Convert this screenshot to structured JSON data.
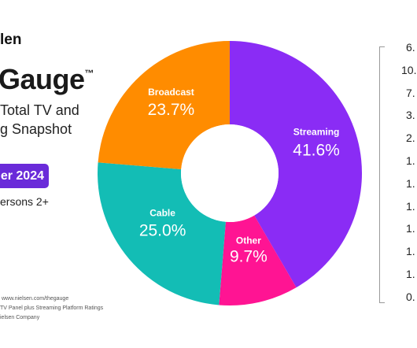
{
  "header": {
    "logo_text": "len",
    "title": "Gauge",
    "trademark": "™",
    "subtitle_line1": "Total TV and",
    "subtitle_line2": "g Snapshot",
    "month_badge": "er 2024",
    "demographic": "ersons 2+"
  },
  "footer": {
    "line1": "www.nielsen.com/thegauge",
    "line2": "TV Panel plus Streaming Platform Ratings",
    "line3": "ielsen Company"
  },
  "colors": {
    "streaming": "#8a2cf5",
    "other": "#ff1493",
    "cable": "#13bdb5",
    "broadcast": "#ff8c00",
    "badge": "#6a2bd9"
  },
  "chart_data": {
    "type": "pie",
    "style": "donut",
    "slices": [
      {
        "label": "Streaming",
        "value": 41.6,
        "display": "41.6%",
        "color": "#8a2cf5"
      },
      {
        "label": "Other",
        "value": 9.7,
        "display": "9.7%",
        "color": "#ff1493"
      },
      {
        "label": "Cable",
        "value": 25.0,
        "display": "25.0%",
        "color": "#13bdb5"
      },
      {
        "label": "Broadcast",
        "value": 23.7,
        "display": "23.7%",
        "color": "#ff8c00"
      }
    ]
  },
  "right_list": [
    "6.",
    "10.",
    "7.",
    "3.",
    "2.",
    "1.",
    "1.",
    "1.",
    "1.",
    "1.",
    "1.",
    "0."
  ]
}
